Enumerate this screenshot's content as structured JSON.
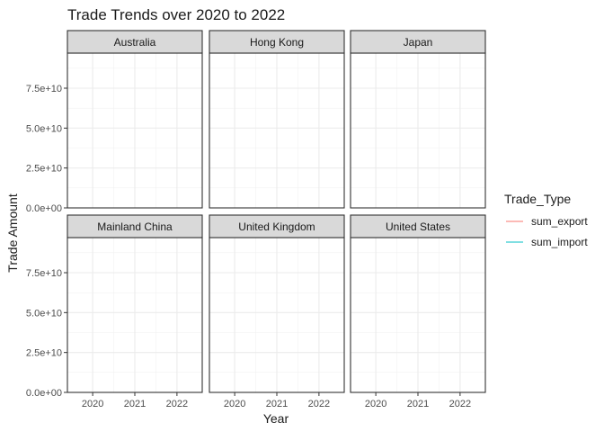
{
  "chart_data": {
    "type": "line",
    "title": "Trade Trends over 2020 to 2022",
    "xlabel": "Year",
    "ylabel": "Trade Amount",
    "x_ticks": [
      "2020",
      "2021",
      "2022"
    ],
    "xlim": [
      2019.4,
      2022.6
    ],
    "y_ticks": [
      "0.0e+00",
      "2.5e+10",
      "5.0e+10",
      "7.5e+10"
    ],
    "y_tick_values": [
      0,
      25000000000,
      50000000000,
      75000000000
    ],
    "ylim": [
      0,
      97000000000
    ],
    "grid": true,
    "facets": [
      "Australia",
      "Hong Kong",
      "Japan",
      "Mainland China",
      "United Kingdom",
      "United States"
    ],
    "legend": {
      "title": "Trade_Type",
      "position": "right",
      "entries": [
        {
          "name": "sum_export",
          "color": "#F8766D"
        },
        {
          "name": "sum_import",
          "color": "#00BFC4"
        }
      ]
    },
    "series": [
      {
        "name": "sum_export",
        "color": "#F8766D",
        "values": []
      },
      {
        "name": "sum_import",
        "color": "#00BFC4",
        "values": []
      }
    ]
  }
}
